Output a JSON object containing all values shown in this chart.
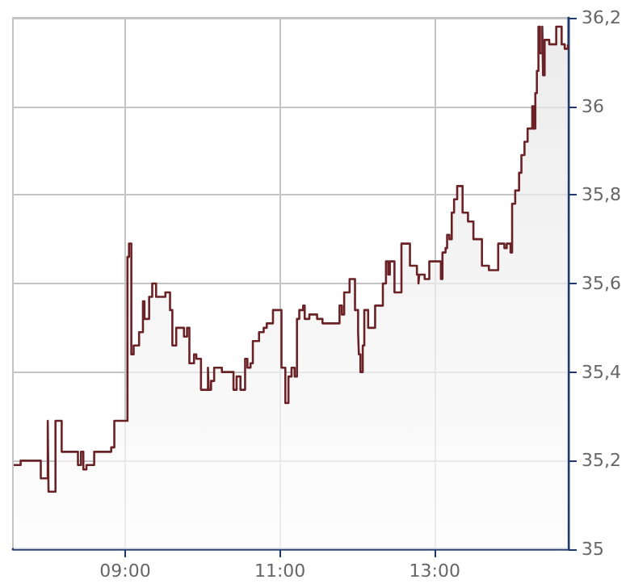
{
  "chart_data": {
    "type": "area",
    "color": "#6b2226",
    "marker": "none",
    "grid": true,
    "x": [
      7.56,
      7.65,
      7.65,
      7.91,
      7.91,
      8.0,
      8.0,
      8.01,
      8.01,
      8.1,
      8.1,
      8.18,
      8.18,
      8.39,
      8.39,
      8.43,
      8.43,
      8.46,
      8.46,
      8.5,
      8.5,
      8.6,
      8.6,
      8.82,
      8.82,
      8.86,
      8.86,
      9.03,
      9.03,
      9.05,
      9.05,
      9.08,
      9.08,
      9.11,
      9.11,
      9.18,
      9.18,
      9.23,
      9.23,
      9.25,
      9.25,
      9.31,
      9.31,
      9.35,
      9.35,
      9.4,
      9.4,
      9.52,
      9.52,
      9.58,
      9.58,
      9.61,
      9.61,
      9.66,
      9.66,
      9.76,
      9.76,
      9.8,
      9.8,
      9.83,
      9.83,
      9.89,
      9.89,
      9.92,
      9.92,
      9.98,
      9.98,
      10.07,
      10.07,
      10.08,
      10.08,
      10.11,
      10.11,
      10.15,
      10.15,
      10.25,
      10.25,
      10.4,
      10.4,
      10.44,
      10.44,
      10.49,
      10.49,
      10.55,
      10.55,
      10.58,
      10.58,
      10.62,
      10.62,
      10.65,
      10.65,
      10.73,
      10.73,
      10.79,
      10.79,
      10.83,
      10.83,
      10.91,
      10.91,
      11.02,
      11.02,
      11.07,
      11.07,
      11.11,
      11.11,
      11.15,
      11.15,
      11.19,
      11.19,
      11.22,
      11.22,
      11.25,
      11.25,
      11.3,
      11.3,
      11.32,
      11.32,
      11.38,
      11.38,
      11.48,
      11.48,
      11.55,
      11.55,
      11.66,
      11.66,
      11.77,
      11.77,
      11.8,
      11.8,
      11.83,
      11.83,
      11.9,
      11.9,
      11.97,
      11.97,
      12.01,
      12.01,
      12.02,
      12.02,
      12.04,
      12.04,
      12.07,
      12.07,
      12.09,
      12.09,
      12.14,
      12.14,
      12.23,
      12.23,
      12.33,
      12.33,
      12.37,
      12.37,
      12.4,
      12.4,
      12.42,
      12.42,
      12.48,
      12.48,
      12.57,
      12.57,
      12.68,
      12.68,
      12.77,
      12.77,
      12.79,
      12.79,
      12.8,
      12.8,
      12.87,
      12.87,
      12.93,
      12.93,
      13.08,
      13.08,
      13.1,
      13.1,
      13.14,
      13.14,
      13.16,
      13.16,
      13.19,
      13.19,
      13.22,
      13.22,
      13.25,
      13.25,
      13.29,
      13.29,
      13.36,
      13.36,
      13.43,
      13.43,
      13.5,
      13.5,
      13.61,
      13.61,
      13.7,
      13.7,
      13.82,
      13.82,
      13.9,
      13.9,
      13.93,
      13.93,
      13.98,
      13.98,
      14.0,
      14.0,
      14.04,
      14.04,
      14.09,
      14.09,
      14.12,
      14.12,
      14.16,
      14.16,
      14.2,
      14.2,
      14.26,
      14.26,
      14.28,
      14.28,
      14.3,
      14.3,
      14.32,
      14.32,
      14.34,
      14.34,
      14.36,
      14.36,
      14.39,
      14.39,
      14.4,
      14.4,
      14.42,
      14.42,
      14.48,
      14.48,
      14.57,
      14.57,
      14.64,
      14.64,
      14.68,
      14.68,
      14.72,
      14.72
    ],
    "values": [
      35.19,
      35.19,
      35.2,
      35.2,
      35.16,
      35.16,
      35.29,
      35.29,
      35.13,
      35.13,
      35.29,
      35.29,
      35.22,
      35.22,
      35.19,
      35.19,
      35.22,
      35.22,
      35.18,
      35.18,
      35.19,
      35.19,
      35.22,
      35.22,
      35.23,
      35.23,
      35.29,
      35.29,
      35.66,
      35.66,
      35.69,
      35.69,
      35.44,
      35.44,
      35.46,
      35.46,
      35.49,
      35.49,
      35.56,
      35.56,
      35.52,
      35.52,
      35.57,
      35.57,
      35.6,
      35.6,
      35.57,
      35.57,
      35.58,
      35.58,
      35.54,
      35.54,
      35.46,
      35.46,
      35.5,
      35.5,
      35.48,
      35.48,
      35.5,
      35.5,
      35.42,
      35.42,
      35.44,
      35.44,
      35.43,
      35.43,
      35.36,
      35.36,
      35.41,
      35.41,
      35.36,
      35.36,
      35.38,
      35.38,
      35.41,
      35.41,
      35.4,
      35.4,
      35.36,
      35.36,
      35.39,
      35.39,
      35.36,
      35.36,
      35.43,
      35.43,
      35.41,
      35.41,
      35.42,
      35.42,
      35.47,
      35.47,
      35.49,
      35.49,
      35.5,
      35.5,
      35.51,
      35.51,
      35.54,
      35.54,
      35.41,
      35.41,
      35.33,
      35.33,
      35.39,
      35.39,
      35.41,
      35.41,
      35.39,
      35.39,
      35.52,
      35.52,
      35.54,
      35.54,
      35.55,
      35.55,
      35.52,
      35.52,
      35.53,
      35.53,
      35.52,
      35.52,
      35.51,
      35.51,
      35.51,
      35.51,
      35.55,
      35.55,
      35.53,
      35.53,
      35.58,
      35.58,
      35.61,
      35.61,
      35.54,
      35.54,
      35.49,
      35.49,
      35.44,
      35.44,
      35.4,
      35.4,
      35.46,
      35.46,
      35.54,
      35.54,
      35.5,
      35.5,
      35.55,
      35.55,
      35.6,
      35.6,
      35.65,
      35.65,
      35.62,
      35.62,
      35.65,
      35.65,
      35.58,
      35.58,
      35.69,
      35.69,
      35.64,
      35.64,
      35.62,
      35.62,
      35.6,
      35.6,
      35.62,
      35.62,
      35.61,
      35.61,
      35.65,
      35.65,
      35.61,
      35.61,
      35.67,
      35.67,
      35.68,
      35.68,
      35.71,
      35.71,
      35.7,
      35.7,
      35.76,
      35.76,
      35.79,
      35.79,
      35.82,
      35.82,
      35.76,
      35.76,
      35.74,
      35.74,
      35.7,
      35.7,
      35.64,
      35.64,
      35.63,
      35.63,
      35.69,
      35.69,
      35.68,
      35.68,
      35.69,
      35.69,
      35.67,
      35.67,
      35.78,
      35.78,
      35.81,
      35.81,
      35.85,
      35.85,
      35.89,
      35.89,
      35.92,
      35.92,
      35.95,
      35.95,
      36.0,
      36.0,
      35.95,
      35.95,
      36.03,
      36.03,
      36.08,
      36.08,
      36.18,
      36.18,
      36.12,
      36.12,
      36.18,
      36.18,
      36.07,
      36.07,
      36.15,
      36.15,
      36.14,
      36.14,
      36.18,
      36.18,
      36.14,
      36.14,
      36.13,
      36.13,
      36.14
    ],
    "xlim": [
      7.55,
      14.73
    ],
    "xticks": [
      {
        "value": 9,
        "label": "09:00"
      },
      {
        "value": 11,
        "label": "11:00"
      },
      {
        "value": 13,
        "label": "13:00"
      }
    ],
    "ylim": [
      35,
      36.2
    ],
    "yticks": [
      35,
      {
        "value": 35.2,
        "label": "35,2"
      },
      {
        "value": 35.4,
        "label": "35,4"
      },
      {
        "value": 35.6,
        "label": "35,6"
      },
      {
        "value": 35.8,
        "label": "35,8"
      },
      36,
      {
        "value": 36.2,
        "label": "36,2"
      }
    ]
  }
}
